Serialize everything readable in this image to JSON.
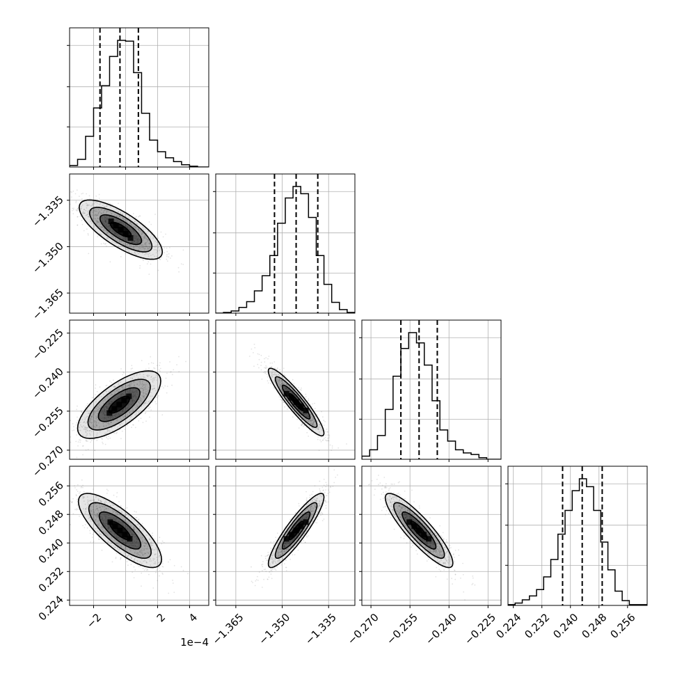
{
  "chart_data": {
    "type": "corner",
    "grid": true,
    "quantile_lines": [
      0.16,
      0.5,
      0.84
    ],
    "parameters": [
      {
        "x_ticks": [
          "−2",
          "0",
          "2",
          "4"
        ],
        "x_tick_values": [
          -2,
          0,
          2,
          4
        ],
        "x_range": [
          -3.5,
          5.2
        ],
        "offset_text": "1e−4",
        "y_ticks": [],
        "quantiles": [
          -1.6,
          -0.35,
          0.8
        ],
        "hist_bins": [
          -3.5,
          -3.0,
          -2.5,
          -2.0,
          -1.5,
          -1.0,
          -0.5,
          0.0,
          0.5,
          1.0,
          1.5,
          2.0,
          2.5,
          3.0,
          3.5,
          4.0,
          4.5,
          5.2
        ],
        "hist_counts": [
          2,
          10,
          40,
          77,
          106,
          144,
          165,
          164,
          123,
          70,
          35,
          20,
          12,
          7,
          3,
          1,
          0
        ]
      },
      {
        "x_ticks": [
          "−1.365",
          "−1.350",
          "−1.335"
        ],
        "x_tick_values": [
          -1.365,
          -1.35,
          -1.335
        ],
        "x_range": [
          -1.3715,
          -1.3265
        ],
        "y_ticks": [
          "−1.335",
          "−1.350",
          "−1.365"
        ],
        "y_tick_values": [
          -1.335,
          -1.35,
          -1.365
        ],
        "quantiles": [
          -1.3525,
          -1.3455,
          -1.3385
        ],
        "hist_bins": [
          -1.3715,
          -1.369,
          -1.3665,
          -1.364,
          -1.3615,
          -1.359,
          -1.3565,
          -1.354,
          -1.3515,
          -1.349,
          -1.3465,
          -1.344,
          -1.3415,
          -1.339,
          -1.3365,
          -1.334,
          -1.3315,
          -1.329,
          -1.3265
        ],
        "hist_counts": [
          0,
          1,
          3,
          8,
          16,
          31,
          52,
          80,
          125,
          160,
          176,
          166,
          133,
          80,
          40,
          15,
          5,
          1
        ]
      },
      {
        "x_ticks": [
          "−0.270",
          "−0.255",
          "−0.240",
          "−0.225"
        ],
        "x_tick_values": [
          -0.27,
          -0.255,
          -0.24,
          -0.225
        ],
        "x_range": [
          -0.2735,
          -0.22
        ],
        "y_ticks": [
          "−0.225",
          "−0.240",
          "−0.255",
          "−0.270"
        ],
        "y_tick_values": [
          -0.225,
          -0.24,
          -0.255,
          -0.27
        ],
        "quantiles": [
          -0.2585,
          -0.2515,
          -0.2445
        ],
        "hist_bins": [
          -0.2735,
          -0.2705,
          -0.2675,
          -0.2645,
          -0.2615,
          -0.2585,
          -0.2555,
          -0.2525,
          -0.2495,
          -0.2465,
          -0.2435,
          -0.2405,
          -0.2375,
          -0.2345,
          -0.2315,
          -0.2285,
          -0.2255,
          -0.22
        ],
        "hist_counts": [
          4,
          12,
          30,
          63,
          105,
          140,
          160,
          147,
          119,
          74,
          37,
          23,
          12,
          8,
          6,
          2,
          0
        ]
      },
      {
        "x_ticks": [
          "0.224",
          "0.232",
          "0.240",
          "0.248",
          "0.256"
        ],
        "x_tick_values": [
          0.224,
          0.232,
          0.24,
          0.248,
          0.256
        ],
        "x_range": [
          0.2225,
          0.2615
        ],
        "y_ticks": [
          "0.256",
          "0.248",
          "0.240",
          "0.232",
          "0.224"
        ],
        "y_tick_values": [
          0.256,
          0.248,
          0.24,
          0.232,
          0.224
        ],
        "quantiles": [
          0.2378,
          0.2433,
          0.2489
        ],
        "hist_bins": [
          0.2225,
          0.2245,
          0.2265,
          0.2285,
          0.2305,
          0.2325,
          0.2345,
          0.2365,
          0.2385,
          0.2405,
          0.2425,
          0.2445,
          0.2465,
          0.2485,
          0.2505,
          0.2525,
          0.2545,
          0.2565,
          0.2615
        ],
        "hist_counts": [
          1,
          3,
          7,
          12,
          20,
          36,
          58,
          90,
          120,
          145,
          160,
          150,
          120,
          80,
          45,
          18,
          6,
          1
        ]
      }
    ],
    "pairs": [
      {
        "row": 1,
        "col": 0,
        "center": [
          -0.3,
          -1.3445
        ],
        "sd_x": 1.3,
        "sd_y": 0.0048,
        "corr": -0.75
      },
      {
        "row": 2,
        "col": 0,
        "center": [
          -0.4,
          -0.2525
        ],
        "sd_x": 1.3,
        "sd_y": 0.0065,
        "corr": 0.7
      },
      {
        "row": 2,
        "col": 1,
        "center": [
          -1.3455,
          -0.2515
        ],
        "sd_x": 0.0045,
        "sd_y": 0.0065,
        "corr": -0.92
      },
      {
        "row": 3,
        "col": 0,
        "center": [
          -0.35,
          0.2435
        ],
        "sd_x": 1.3,
        "sd_y": 0.0052,
        "corr": -0.78
      },
      {
        "row": 3,
        "col": 1,
        "center": [
          -1.3455,
          0.2435
        ],
        "sd_x": 0.0045,
        "sd_y": 0.0052,
        "corr": 0.9
      },
      {
        "row": 3,
        "col": 2,
        "center": [
          -0.2515,
          0.2435
        ],
        "sd_x": 0.0065,
        "sd_y": 0.0052,
        "corr": -0.88
      }
    ],
    "colors": {
      "hist_line": "#000000",
      "quantile_line": "#000000",
      "scatter_points": "#808080",
      "contour_line": "#000000",
      "grid": "#b0b0b0",
      "density_fill": "#000000"
    }
  }
}
